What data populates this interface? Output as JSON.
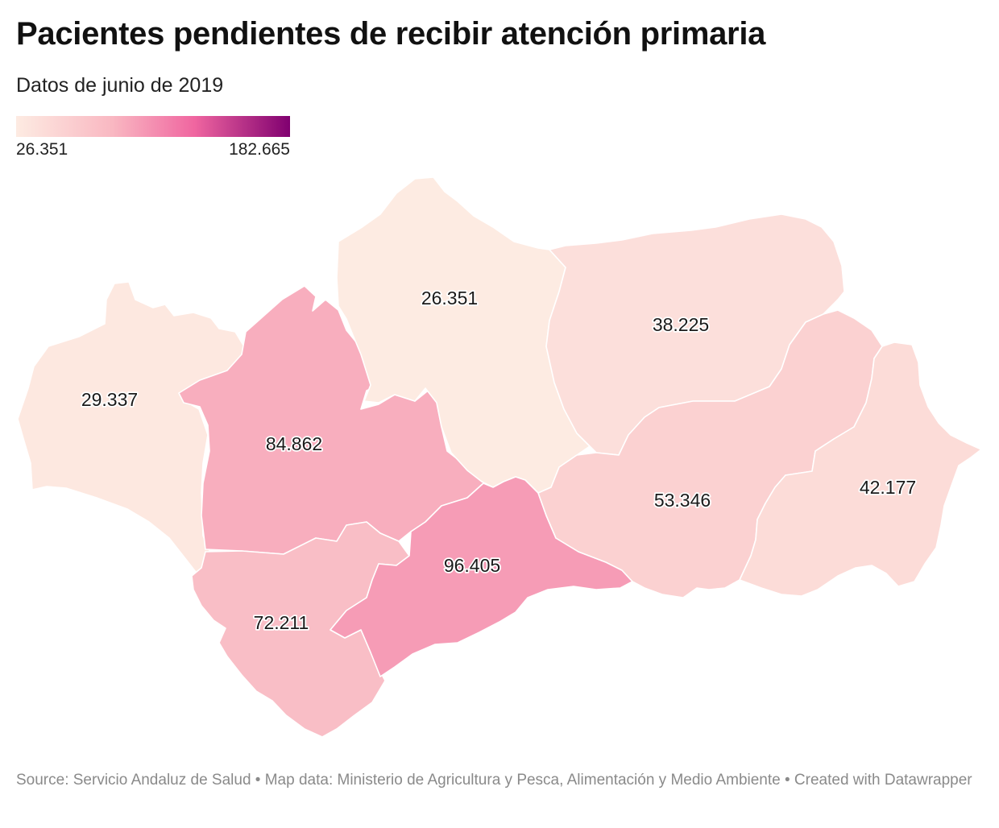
{
  "header": {
    "title": "Pacientes pendientes de recibir atención primaria",
    "subtitle": "Datos de junio de 2019"
  },
  "legend": {
    "min_label": "26.351",
    "max_label": "182.665",
    "min_value": 26351,
    "max_value": 182665,
    "colors": [
      "#fdebe2",
      "#f9b8c2",
      "#f066a0",
      "#800070"
    ]
  },
  "provinces": [
    {
      "id": "huelva",
      "value_label": "29.337",
      "value": 29337
    },
    {
      "id": "sevilla",
      "value_label": "84.862",
      "value": 84862
    },
    {
      "id": "cordoba",
      "value_label": "26.351",
      "value": 26351
    },
    {
      "id": "jaen",
      "value_label": "38.225",
      "value": 38225
    },
    {
      "id": "cadiz",
      "value_label": "72.211",
      "value": 72211
    },
    {
      "id": "malaga",
      "value_label": "96.405",
      "value": 96405
    },
    {
      "id": "granada",
      "value_label": "53.346",
      "value": 53346
    },
    {
      "id": "almeria",
      "value_label": "42.177",
      "value": 42177
    }
  ],
  "footer": {
    "text": "Source: Servicio Andaluz de Salud • Map data: Ministerio de Agricultura y Pesca, Alimentación y Medio Ambiente  • Created with Datawrapper"
  }
}
